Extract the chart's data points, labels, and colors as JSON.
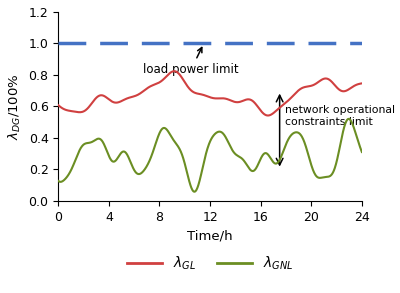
{
  "title": "",
  "xlabel": "Time/h",
  "xlim": [
    0,
    24
  ],
  "ylim": [
    0,
    1.2
  ],
  "yticks": [
    0,
    0.2,
    0.4,
    0.6,
    0.8,
    1.0,
    1.2
  ],
  "xticks": [
    0,
    4,
    8,
    12,
    16,
    20,
    24
  ],
  "dashed_line_y": 1.0,
  "dashed_line_color": "#4472C4",
  "lambda_GL_color": "#D04040",
  "lambda_GNL_color": "#6B8E23",
  "background_color": "#ffffff",
  "annotation1_text": "load power limit",
  "annotation2_text": "network operational\nconstraints limit"
}
